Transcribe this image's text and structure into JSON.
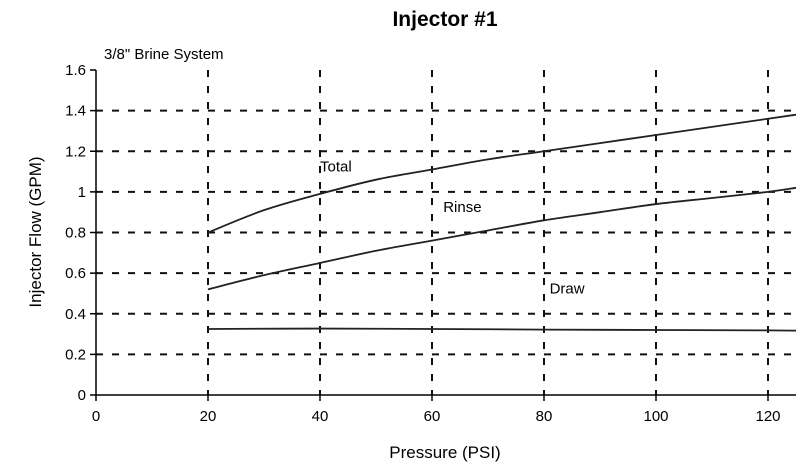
{
  "chart_data": {
    "type": "line",
    "title": "Injector #1",
    "subtitle": "3/8\" Brine System",
    "xlabel": "Pressure (PSI)",
    "ylabel": "Injector Flow (GPM)",
    "xlim": [
      0,
      125
    ],
    "ylim": [
      0,
      1.6
    ],
    "x_ticks": [
      0,
      20,
      40,
      60,
      80,
      100,
      120
    ],
    "y_ticks": [
      0,
      0.2,
      0.4,
      0.6,
      0.8,
      1,
      1.2,
      1.4,
      1.6
    ],
    "x_tick_labels": [
      "0",
      "20",
      "40",
      "60",
      "80",
      "100",
      "120"
    ],
    "y_tick_labels": [
      "0",
      "0.2",
      "0.4",
      "0.6",
      "0.8",
      "1",
      "1.2",
      "1.4",
      "1.6"
    ],
    "grid": true,
    "series": [
      {
        "name": "Total",
        "label_at": [
          40,
          1.1
        ],
        "x": [
          20,
          30,
          40,
          50,
          60,
          70,
          80,
          90,
          100,
          110,
          120,
          125
        ],
        "y": [
          0.8,
          0.91,
          0.99,
          1.06,
          1.11,
          1.16,
          1.2,
          1.24,
          1.28,
          1.32,
          1.36,
          1.38
        ]
      },
      {
        "name": "Rinse",
        "label_at": [
          62,
          0.9
        ],
        "x": [
          20,
          30,
          40,
          50,
          60,
          70,
          80,
          90,
          100,
          110,
          120,
          125
        ],
        "y": [
          0.52,
          0.59,
          0.65,
          0.71,
          0.76,
          0.81,
          0.86,
          0.9,
          0.94,
          0.97,
          1.0,
          1.02
        ]
      },
      {
        "name": "Draw",
        "label_at": [
          81,
          0.5
        ],
        "x": [
          20,
          40,
          60,
          80,
          100,
          120,
          125
        ],
        "y": [
          0.325,
          0.327,
          0.325,
          0.322,
          0.32,
          0.318,
          0.317
        ]
      }
    ]
  }
}
